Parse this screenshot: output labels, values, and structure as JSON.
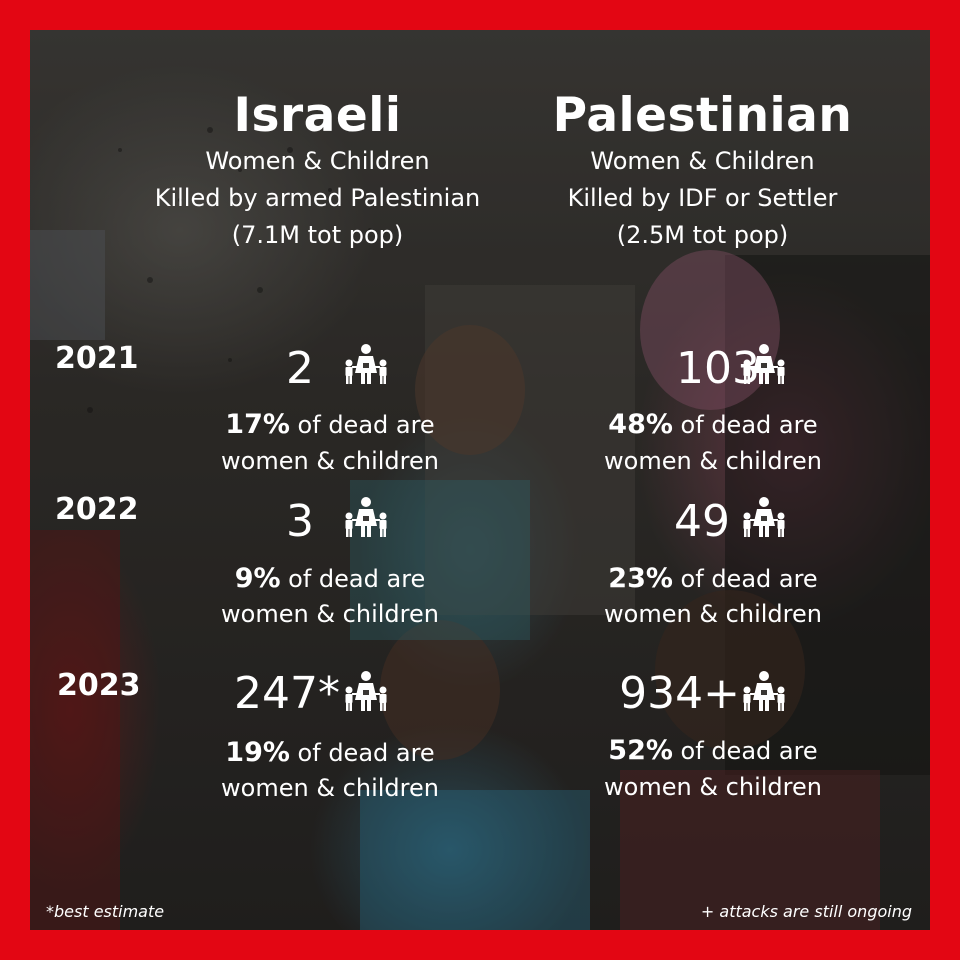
{
  "israeli": {
    "title": "Israeli",
    "line1": "Women & Children",
    "line2": "Killed by armed Palestinian",
    "line3": "(7.1M tot pop)"
  },
  "palestinian": {
    "title": "Palestinian",
    "line1": "Women & Children",
    "line2": "Killed by IDF or Settler",
    "line3": "(2.5M tot pop)"
  },
  "rows": [
    {
      "year": "2021",
      "israeli": {
        "count": "2",
        "pct": "17%",
        "pct_text": " of dead are",
        "line2": "women & children"
      },
      "palestinian": {
        "count": "103",
        "pct": "48%",
        "pct_text": " of dead are",
        "line2": "women & children"
      }
    },
    {
      "year": "2022",
      "israeli": {
        "count": "3",
        "pct": "9%",
        "pct_text": " of dead are",
        "line2": "women & children"
      },
      "palestinian": {
        "count": "49",
        "pct": "23%",
        "pct_text": " of dead are",
        "line2": "women & children"
      }
    },
    {
      "year": "2023",
      "israeli": {
        "count": "247*",
        "pct": "19%",
        "pct_text": " of dead are",
        "line2": "women & children"
      },
      "palestinian": {
        "count": "934+",
        "pct": "52%",
        "pct_text": " of dead are",
        "line2": "women & children"
      }
    }
  ],
  "footnotes": {
    "left": "*best estimate",
    "right": "+ attacks are still ongoing"
  },
  "colors": {
    "border": "#e30613",
    "text": "#ffffff"
  },
  "icons": {
    "family": "family-icon"
  }
}
